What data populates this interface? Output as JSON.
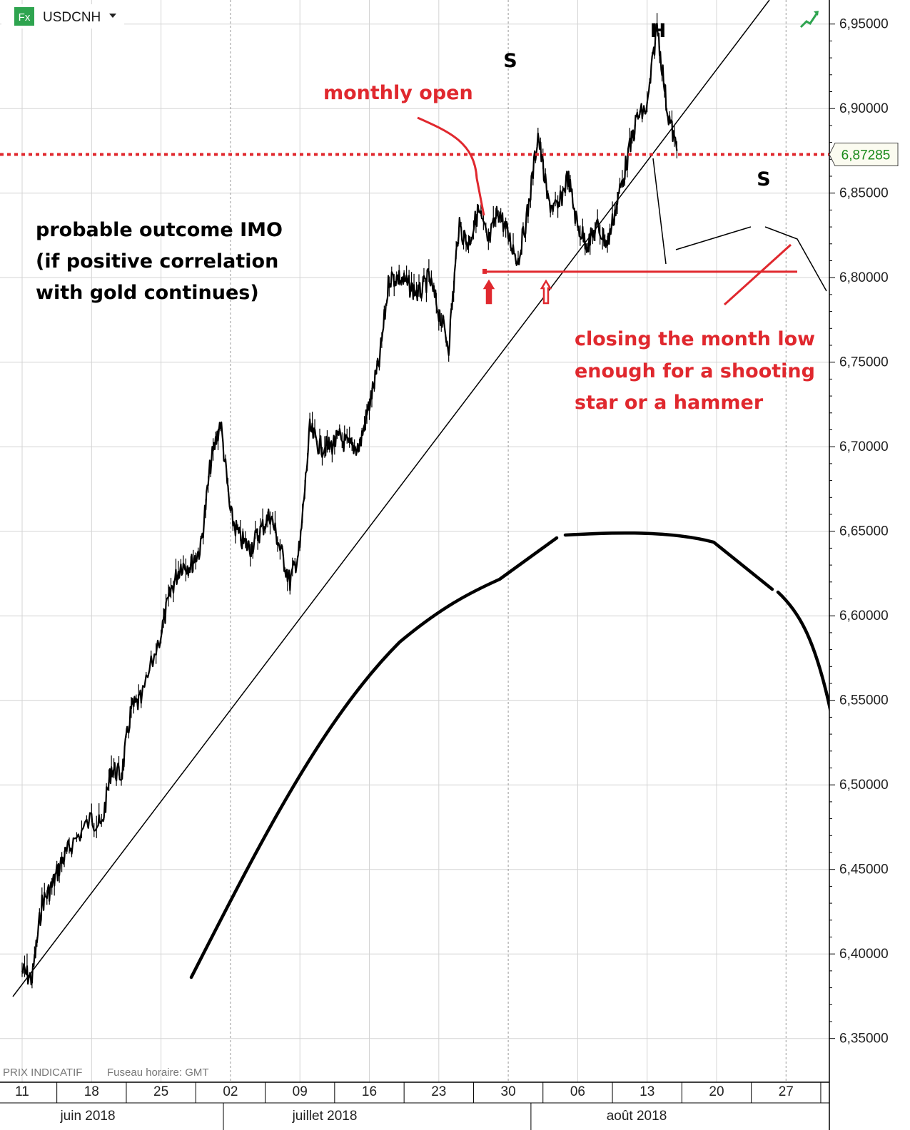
{
  "header": {
    "fx_badge": "Fx",
    "symbol": "USDCNH",
    "dropdown_icon": "caret-down-icon",
    "status_icon": "trend-up-icon"
  },
  "footer": {
    "price_label": "PRIX INDICATIF",
    "timezone_label": "Fuseau horaire: GMT"
  },
  "colors": {
    "annotation_red": "#e0282e",
    "price_tag_text": "#1a8a1a",
    "grid": "#d4d4d4"
  },
  "annotations": {
    "monthly_open": "monthly open",
    "shoulder_left": "S",
    "head": "H",
    "shoulder_right": "S",
    "outcome_line1": "probable outcome IMO",
    "outcome_line2": "(if positive correlation",
    "outcome_line3": "with gold continues)",
    "closing_line1": "closing the month low",
    "closing_line2": "enough for a shooting",
    "closing_line3": "star or a hammer"
  },
  "chart_data": {
    "type": "line",
    "symbol": "USDCNH",
    "y_ticks": [
      "6,95000",
      "6,90000",
      "6,85000",
      "6,80000",
      "6,75000",
      "6,70000",
      "6,65000",
      "6,60000",
      "6,55000",
      "6,50000",
      "6,45000",
      "6,40000",
      "6,35000"
    ],
    "y_tick_values": [
      6.95,
      6.9,
      6.85,
      6.8,
      6.75,
      6.7,
      6.65,
      6.6,
      6.55,
      6.5,
      6.45,
      6.4,
      6.35
    ],
    "ylim": [
      6.335,
      6.965
    ],
    "x_ticks": [
      "11",
      "18",
      "25",
      "02",
      "09",
      "16",
      "23",
      "30",
      "06",
      "13",
      "20",
      "27"
    ],
    "x_tick_dates": [
      "2018-06-11",
      "2018-06-18",
      "2018-06-25",
      "2018-07-02",
      "2018-07-09",
      "2018-07-16",
      "2018-07-23",
      "2018-07-30",
      "2018-08-06",
      "2018-08-13",
      "2018-08-20",
      "2018-08-27"
    ],
    "month_labels": [
      "juin 2018",
      "juillet 2018",
      "août 2018"
    ],
    "current_price": "6,87285",
    "current_price_value": 6.87285,
    "monthly_open_value": 6.87285,
    "support_value": 6.8035,
    "price_anchors": [
      [
        "2018-06-11",
        6.39
      ],
      [
        "2018-06-12",
        6.385
      ],
      [
        "2018-06-13",
        6.43
      ],
      [
        "2018-06-14",
        6.44
      ],
      [
        "2018-06-15",
        6.455
      ],
      [
        "2018-06-16",
        6.465
      ],
      [
        "2018-06-18",
        6.48
      ],
      [
        "2018-06-19",
        6.475
      ],
      [
        "2018-06-20",
        6.51
      ],
      [
        "2018-06-21",
        6.505
      ],
      [
        "2018-06-22",
        6.545
      ],
      [
        "2018-06-23",
        6.55
      ],
      [
        "2018-06-25",
        6.59
      ],
      [
        "2018-06-26",
        6.615
      ],
      [
        "2018-06-27",
        6.63
      ],
      [
        "2018-06-28",
        6.63
      ],
      [
        "2018-06-29",
        6.64
      ],
      [
        "2018-06-30",
        6.69
      ],
      [
        "2018-07-01",
        6.715
      ],
      [
        "2018-07-02",
        6.66
      ],
      [
        "2018-07-03",
        6.645
      ],
      [
        "2018-07-04",
        6.64
      ],
      [
        "2018-07-05",
        6.65
      ],
      [
        "2018-07-06",
        6.66
      ],
      [
        "2018-07-07",
        6.64
      ],
      [
        "2018-07-08",
        6.62
      ],
      [
        "2018-07-09",
        6.64
      ],
      [
        "2018-07-10",
        6.71
      ],
      [
        "2018-07-11",
        6.7
      ],
      [
        "2018-07-12",
        6.7
      ],
      [
        "2018-07-13",
        6.705
      ],
      [
        "2018-07-14",
        6.7
      ],
      [
        "2018-07-15",
        6.7
      ],
      [
        "2018-07-16",
        6.725
      ],
      [
        "2018-07-17",
        6.75
      ],
      [
        "2018-07-18",
        6.8
      ],
      [
        "2018-07-19",
        6.8
      ],
      [
        "2018-07-20",
        6.795
      ],
      [
        "2018-07-21",
        6.79
      ],
      [
        "2018-07-22",
        6.8
      ],
      [
        "2018-07-23",
        6.78
      ],
      [
        "2018-07-24",
        6.76
      ],
      [
        "2018-07-25",
        6.83
      ],
      [
        "2018-07-26",
        6.82
      ],
      [
        "2018-07-27",
        6.84
      ],
      [
        "2018-07-28",
        6.82
      ],
      [
        "2018-07-29",
        6.84
      ],
      [
        "2018-07-30",
        6.825
      ],
      [
        "2018-07-31",
        6.81
      ],
      [
        "2018-08-01",
        6.84
      ],
      [
        "2018-08-02",
        6.885
      ],
      [
        "2018-08-03",
        6.845
      ],
      [
        "2018-08-04",
        6.84
      ],
      [
        "2018-08-05",
        6.86
      ],
      [
        "2018-08-06",
        6.83
      ],
      [
        "2018-08-07",
        6.82
      ],
      [
        "2018-08-08",
        6.83
      ],
      [
        "2018-08-09",
        6.82
      ],
      [
        "2018-08-10",
        6.845
      ],
      [
        "2018-08-11",
        6.87
      ],
      [
        "2018-08-12",
        6.895
      ],
      [
        "2018-08-13",
        6.9
      ],
      [
        "2018-08-14",
        6.95
      ],
      [
        "2018-08-15",
        6.9
      ],
      [
        "2018-08-16",
        6.875
      ]
    ]
  }
}
